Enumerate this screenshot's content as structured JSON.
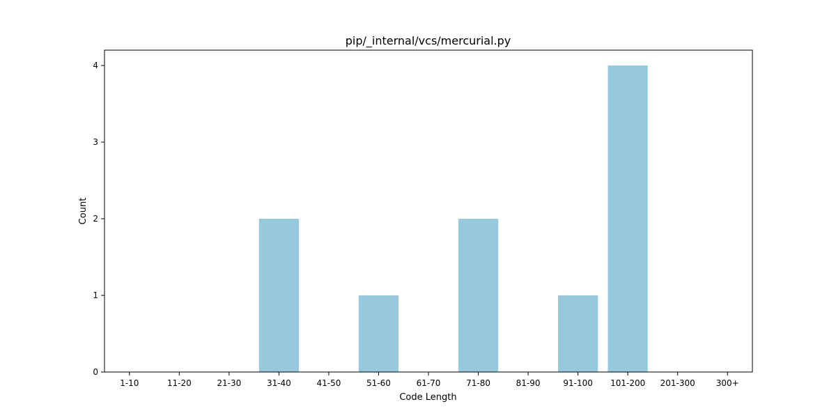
{
  "chart_data": {
    "type": "bar",
    "title": "pip/_internal/vcs/mercurial.py",
    "xlabel": "Code Length",
    "ylabel": "Count",
    "categories": [
      "1-10",
      "11-20",
      "21-30",
      "31-40",
      "41-50",
      "51-60",
      "61-70",
      "71-80",
      "81-90",
      "91-100",
      "101-200",
      "201-300",
      "300+"
    ],
    "values": [
      0,
      0,
      0,
      2,
      0,
      1,
      0,
      2,
      0,
      1,
      4,
      0,
      0
    ],
    "ylim": [
      0,
      4.2
    ],
    "yticks": [
      0,
      1,
      2,
      3,
      4
    ],
    "grid": false,
    "legend": "none",
    "bar_color": "#96c9dd"
  }
}
